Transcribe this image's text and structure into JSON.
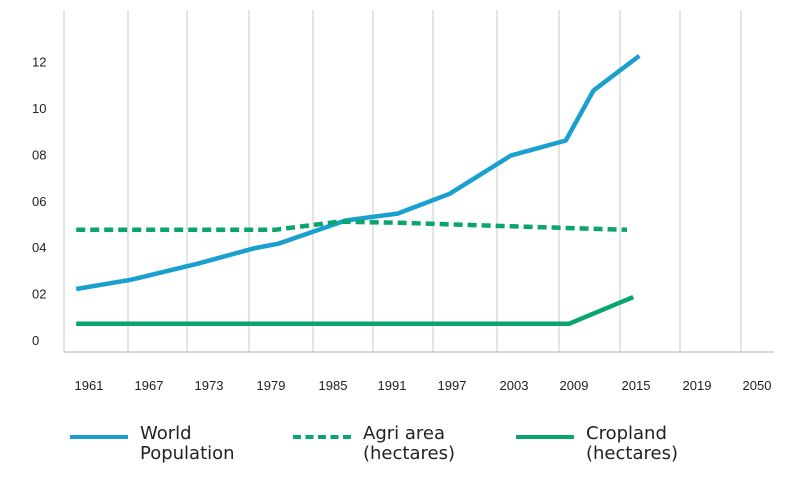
{
  "chart_data": {
    "type": "line",
    "x_ticks": [
      "1961",
      "1967",
      "1973",
      "1979",
      "1985",
      "1991",
      "1997",
      "2003",
      "2009",
      "2015",
      "2019",
      "2050"
    ],
    "y_ticks": [
      "0",
      "02",
      "04",
      "06",
      "08",
      "10",
      "12"
    ],
    "ylim": [
      0,
      13.2
    ],
    "grid": "vertical",
    "legend_position": "bottom",
    "series": [
      {
        "name": "World Population",
        "color": "#1aa0cf",
        "style": "solid",
        "points": [
          [
            0.2,
            2.2
          ],
          [
            1.1,
            2.6
          ],
          [
            2.2,
            3.3
          ],
          [
            3.1,
            3.95
          ],
          [
            3.5,
            4.15
          ],
          [
            4.6,
            5.15
          ],
          [
            5.45,
            5.45
          ],
          [
            6.3,
            6.3
          ],
          [
            7.3,
            7.95
          ],
          [
            8.2,
            8.6
          ],
          [
            8.65,
            10.75
          ],
          [
            9.4,
            12.25
          ]
        ]
      },
      {
        "name": "Agri area\n(hectares)",
        "color": "#0aa56d",
        "style": "dashed",
        "points": [
          [
            0.2,
            4.75
          ],
          [
            3.45,
            4.75
          ],
          [
            4.5,
            5.1
          ],
          [
            5.5,
            5.05
          ],
          [
            7.3,
            4.9
          ],
          [
            9.2,
            4.75
          ]
        ]
      },
      {
        "name": "Cropland\n(hectares)",
        "color": "#0aa56d",
        "style": "solid",
        "points": [
          [
            0.2,
            0.7
          ],
          [
            8.25,
            0.7
          ],
          [
            9.3,
            1.85
          ]
        ]
      }
    ]
  }
}
